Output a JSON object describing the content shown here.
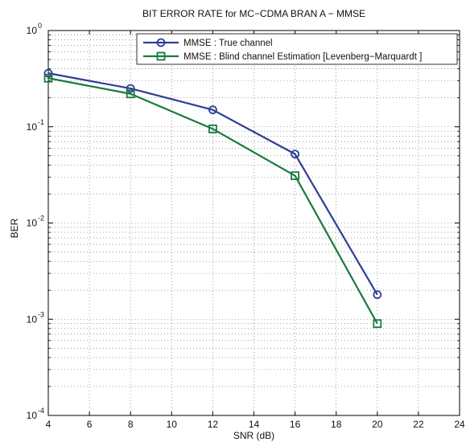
{
  "chart_data": {
    "type": "line",
    "title": "BIT ERROR RATE for MC−CDMA BRAN A − MMSE",
    "xlabel": "SNR (dB)",
    "ylabel": "BER",
    "xlim": [
      4,
      24
    ],
    "ylim": [
      0.0001,
      1
    ],
    "yscale": "log",
    "xticks": [
      "4",
      "6",
      "8",
      "10",
      "12",
      "14",
      "16",
      "18",
      "20",
      "22",
      "24"
    ],
    "yticks": [
      {
        "base": "10",
        "exp": "0"
      },
      {
        "base": "10",
        "exp": "-1"
      },
      {
        "base": "10",
        "exp": "-2"
      },
      {
        "base": "10",
        "exp": "-3"
      },
      {
        "base": "10",
        "exp": "-4"
      }
    ],
    "grid": true,
    "legend_position": "top-right",
    "series": [
      {
        "name": "MMSE : True channel",
        "color": "#2e3d96",
        "marker": "circle",
        "x": [
          4,
          8,
          12,
          16,
          20
        ],
        "y": [
          0.36,
          0.25,
          0.15,
          0.052,
          0.0018
        ]
      },
      {
        "name": "MMSE : Blind channel Estimation [Levenberg−Marquardt ]",
        "color": "#1a7a3e",
        "marker": "square",
        "x": [
          4,
          8,
          12,
          16,
          20
        ],
        "y": [
          0.32,
          0.22,
          0.095,
          0.031,
          0.0009
        ]
      }
    ]
  }
}
